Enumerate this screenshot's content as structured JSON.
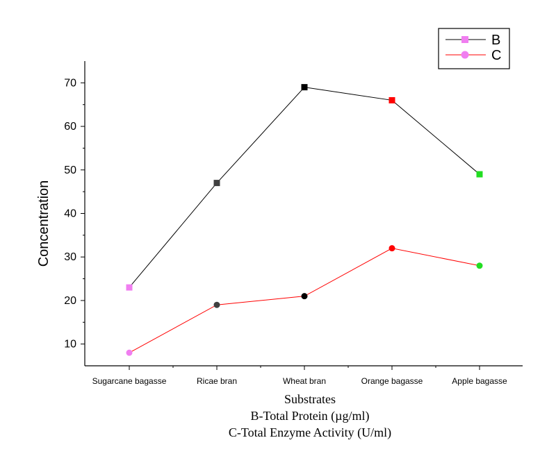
{
  "chart_data": {
    "type": "line",
    "categories": [
      "Sugarcane bagasse",
      "Ricae bran",
      "Wheat bran",
      "Orange bagasse",
      "Apple bagasse"
    ],
    "series": [
      {
        "name": "B",
        "values": [
          23,
          47,
          69,
          66,
          49
        ],
        "line_color": "#000000",
        "marker": "square",
        "marker_colors": [
          "#f07ef0",
          "#404040",
          "#000000",
          "#ff0000",
          "#22dd22"
        ],
        "legend_marker_color": "#f07ef0"
      },
      {
        "name": "C",
        "values": [
          8,
          19,
          21,
          32,
          28
        ],
        "line_color": "#ff0000",
        "marker": "circle",
        "marker_colors": [
          "#f07ef0",
          "#404040",
          "#000000",
          "#ff0000",
          "#22dd22"
        ],
        "legend_marker_color": "#f07ef0"
      }
    ],
    "ylabel": "Concentration",
    "xlabel_lines": [
      "Substrates",
      "B-Total Protein (µg/ml)",
      "C-Total Enzyme Activity (U/ml)"
    ],
    "ylim": [
      5,
      75
    ],
    "yticks": [
      "10",
      "20",
      "30",
      "40",
      "50",
      "60",
      "70"
    ],
    "grid": false,
    "legend_position": "top-right"
  }
}
